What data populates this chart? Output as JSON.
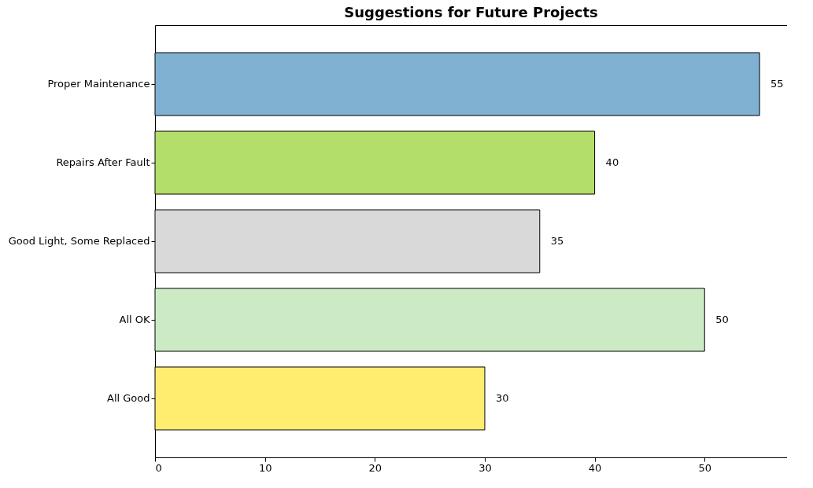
{
  "chart_data": {
    "type": "bar",
    "orientation": "horizontal",
    "title": "Suggestions for Future Projects",
    "categories": [
      "Proper Maintenance",
      "Repairs After Fault",
      "Good Light, Some Replaced",
      "All OK",
      "All Good"
    ],
    "values": [
      55,
      40,
      35,
      50,
      30
    ],
    "colors": [
      "#80b1d3",
      "#b3de69",
      "#d9d9d9",
      "#ccebc5",
      "#ffed6f"
    ],
    "xlim": [
      0,
      57.5
    ],
    "xticks": [
      0,
      10,
      20,
      30,
      40,
      50
    ],
    "data_labels": true
  }
}
